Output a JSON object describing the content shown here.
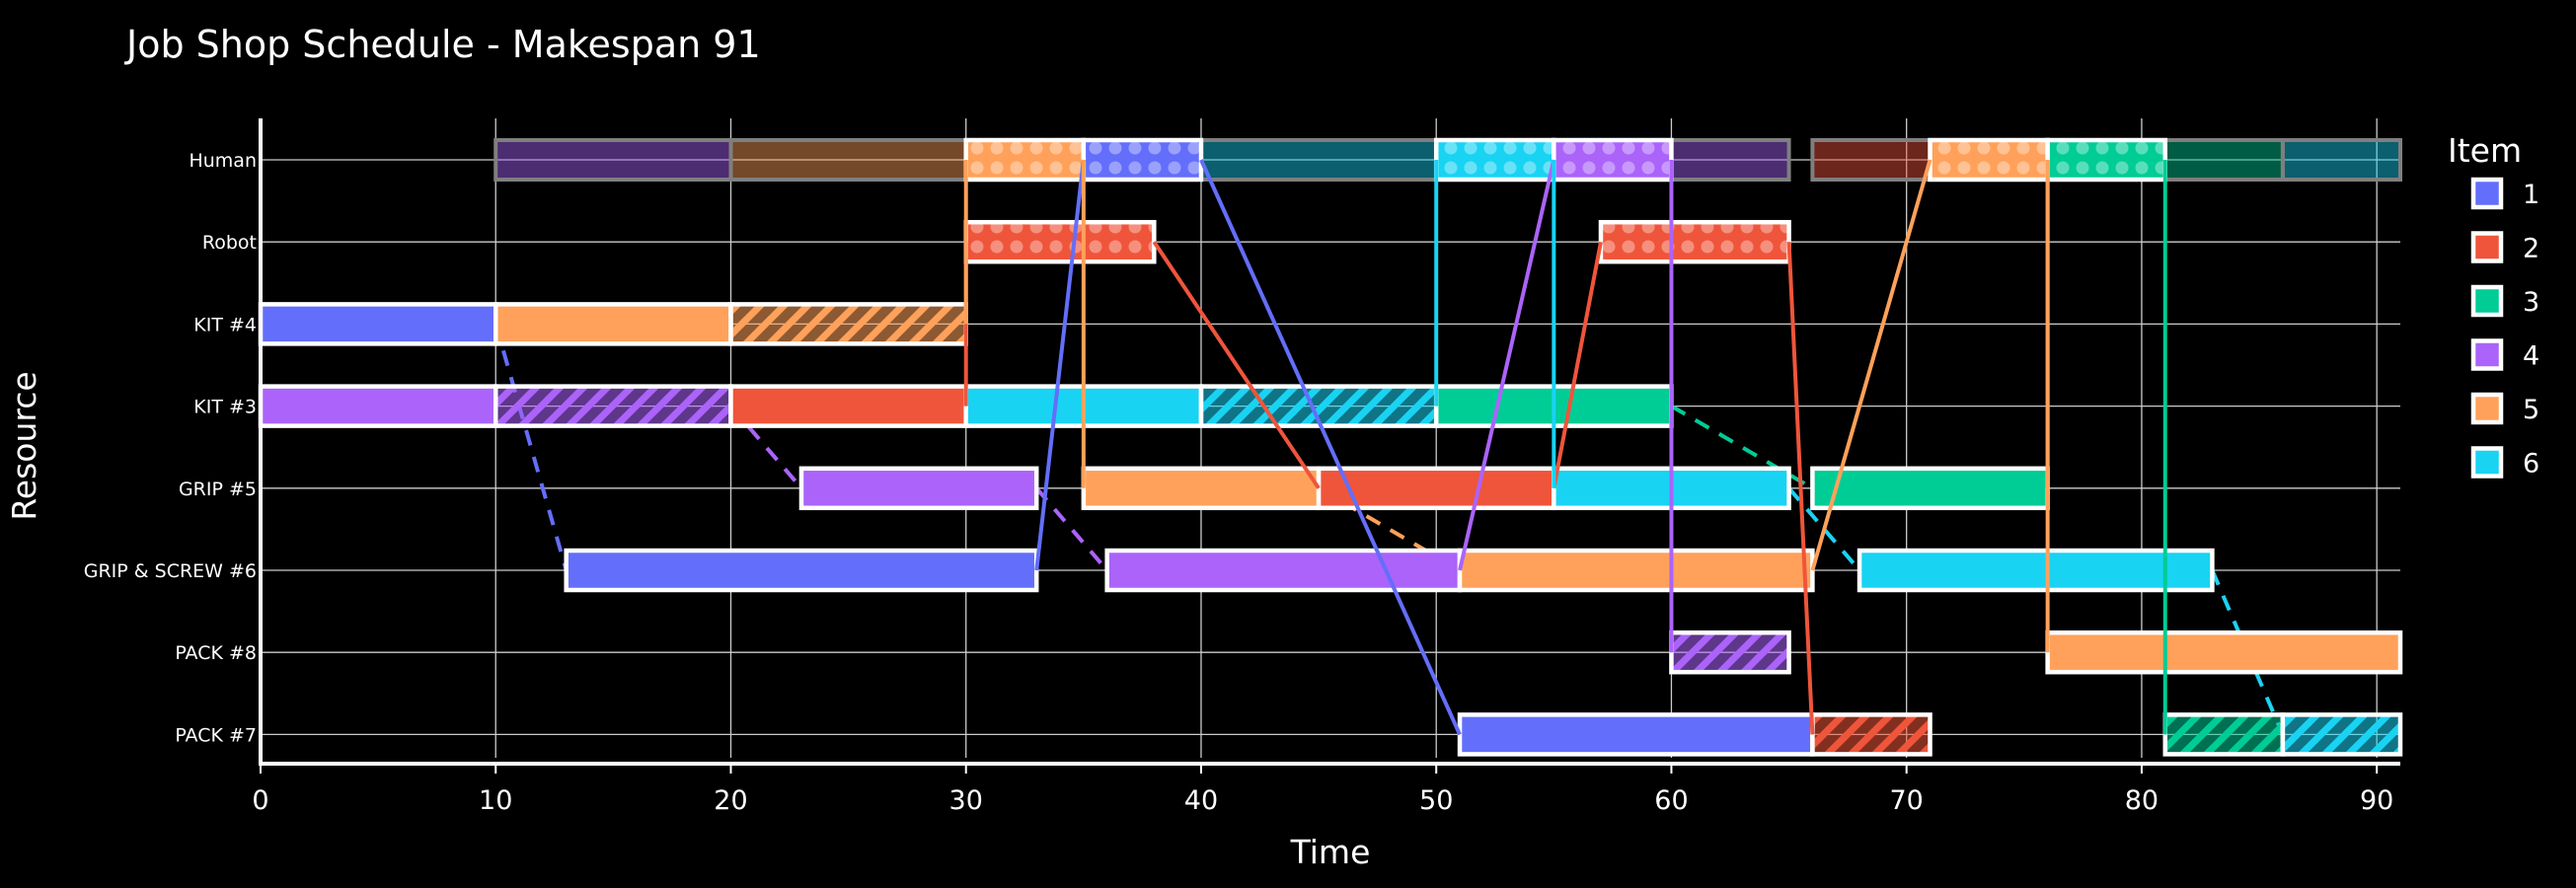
{
  "chart_data": {
    "type": "gantt",
    "title": "Job Shop Schedule - Makespan 91",
    "xlabel": "Time",
    "ylabel": "Resource",
    "xlim": [
      0,
      91
    ],
    "xticks": [
      0,
      10,
      20,
      30,
      40,
      50,
      60,
      70,
      80,
      90
    ],
    "grid": true,
    "legend_title": "Item",
    "legend_position": "right",
    "resources": [
      "Human",
      "Robot",
      "KIT #4",
      "KIT #3",
      "GRIP #5",
      "GRIP & SCREW #6",
      "PACK #8",
      "PACK #7"
    ],
    "items": [
      {
        "name": "1",
        "color": "#636efa"
      },
      {
        "name": "2",
        "color": "#ef553b"
      },
      {
        "name": "3",
        "color": "#00cc96"
      },
      {
        "name": "4",
        "color": "#ab63fa"
      },
      {
        "name": "5",
        "color": "#ffa15a"
      },
      {
        "name": "6",
        "color": "#19d3f3"
      }
    ],
    "background_tasks": [
      {
        "resource": "Human",
        "item": "4",
        "start": 10,
        "end": 20
      },
      {
        "resource": "Human",
        "item": "5",
        "start": 20,
        "end": 30
      },
      {
        "resource": "Human",
        "item": "6",
        "start": 40,
        "end": 50
      },
      {
        "resource": "Human",
        "item": "4",
        "start": 60,
        "end": 65
      },
      {
        "resource": "Human",
        "item": "2",
        "start": 66,
        "end": 71
      },
      {
        "resource": "Human",
        "item": "3",
        "start": 81,
        "end": 86
      },
      {
        "resource": "Human",
        "item": "6",
        "start": 86,
        "end": 91
      }
    ],
    "tasks": [
      {
        "resource": "Human",
        "item": "5",
        "start": 30,
        "end": 35,
        "pattern": "dots"
      },
      {
        "resource": "Human",
        "item": "1",
        "start": 35,
        "end": 40,
        "pattern": "dots"
      },
      {
        "resource": "Human",
        "item": "6",
        "start": 50,
        "end": 55,
        "pattern": "dots"
      },
      {
        "resource": "Human",
        "item": "4",
        "start": 55,
        "end": 60,
        "pattern": "dots"
      },
      {
        "resource": "Human",
        "item": "5",
        "start": 71,
        "end": 76,
        "pattern": "dots"
      },
      {
        "resource": "Human",
        "item": "3",
        "start": 76,
        "end": 81,
        "pattern": "dots"
      },
      {
        "resource": "Robot",
        "item": "2",
        "start": 30,
        "end": 38,
        "pattern": "dots"
      },
      {
        "resource": "Robot",
        "item": "2",
        "start": 57,
        "end": 65,
        "pattern": "dots"
      },
      {
        "resource": "KIT #4",
        "item": "1",
        "start": 0,
        "end": 10,
        "pattern": "solid"
      },
      {
        "resource": "KIT #4",
        "item": "5",
        "start": 10,
        "end": 20,
        "pattern": "solid"
      },
      {
        "resource": "KIT #4",
        "item": "5",
        "start": 20,
        "end": 30,
        "pattern": "hatch"
      },
      {
        "resource": "KIT #3",
        "item": "4",
        "start": 0,
        "end": 10,
        "pattern": "solid"
      },
      {
        "resource": "KIT #3",
        "item": "4",
        "start": 10,
        "end": 20,
        "pattern": "hatch"
      },
      {
        "resource": "KIT #3",
        "item": "2",
        "start": 20,
        "end": 30,
        "pattern": "solid"
      },
      {
        "resource": "KIT #3",
        "item": "6",
        "start": 30,
        "end": 40,
        "pattern": "solid"
      },
      {
        "resource": "KIT #3",
        "item": "6",
        "start": 40,
        "end": 50,
        "pattern": "hatch"
      },
      {
        "resource": "KIT #3",
        "item": "3",
        "start": 50,
        "end": 60,
        "pattern": "solid"
      },
      {
        "resource": "GRIP #5",
        "item": "4",
        "start": 23,
        "end": 33,
        "pattern": "solid"
      },
      {
        "resource": "GRIP #5",
        "item": "5",
        "start": 35,
        "end": 45,
        "pattern": "solid"
      },
      {
        "resource": "GRIP #5",
        "item": "2",
        "start": 45,
        "end": 55,
        "pattern": "solid"
      },
      {
        "resource": "GRIP #5",
        "item": "6",
        "start": 55,
        "end": 65,
        "pattern": "solid"
      },
      {
        "resource": "GRIP #5",
        "item": "3",
        "start": 66,
        "end": 76,
        "pattern": "solid"
      },
      {
        "resource": "GRIP & SCREW #6",
        "item": "1",
        "start": 13,
        "end": 33,
        "pattern": "solid"
      },
      {
        "resource": "GRIP & SCREW #6",
        "item": "4",
        "start": 36,
        "end": 51,
        "pattern": "solid"
      },
      {
        "resource": "GRIP & SCREW #6",
        "item": "5",
        "start": 51,
        "end": 66,
        "pattern": "solid"
      },
      {
        "resource": "GRIP & SCREW #6",
        "item": "6",
        "start": 68,
        "end": 83,
        "pattern": "solid"
      },
      {
        "resource": "PACK #8",
        "item": "4",
        "start": 60,
        "end": 65,
        "pattern": "hatch"
      },
      {
        "resource": "PACK #8",
        "item": "5",
        "start": 76,
        "end": 91,
        "pattern": "solid"
      },
      {
        "resource": "PACK #7",
        "item": "1",
        "start": 51,
        "end": 66,
        "pattern": "solid"
      },
      {
        "resource": "PACK #7",
        "item": "2",
        "start": 66,
        "end": 71,
        "pattern": "hatch"
      },
      {
        "resource": "PACK #7",
        "item": "3",
        "start": 81,
        "end": 86,
        "pattern": "hatch"
      },
      {
        "resource": "PACK #7",
        "item": "6",
        "start": 86,
        "end": 91,
        "pattern": "hatch"
      }
    ],
    "links": [
      {
        "item": "1",
        "from": {
          "resource": "KIT #4",
          "time": 10
        },
        "to": {
          "resource": "GRIP & SCREW #6",
          "time": 13
        },
        "style": "dashed"
      },
      {
        "item": "1",
        "from": {
          "resource": "GRIP & SCREW #6",
          "time": 33
        },
        "to": {
          "resource": "Human",
          "time": 35
        },
        "style": "solid"
      },
      {
        "item": "1",
        "from": {
          "resource": "Human",
          "time": 40
        },
        "to": {
          "resource": "PACK #7",
          "time": 51
        },
        "style": "solid"
      },
      {
        "item": "2",
        "from": {
          "resource": "KIT #3",
          "time": 30
        },
        "to": {
          "resource": "Robot",
          "time": 30
        },
        "style": "solid"
      },
      {
        "item": "2",
        "from": {
          "resource": "Robot",
          "time": 38
        },
        "to": {
          "resource": "GRIP #5",
          "time": 45
        },
        "style": "solid"
      },
      {
        "item": "2",
        "from": {
          "resource": "GRIP #5",
          "time": 55
        },
        "to": {
          "resource": "Robot",
          "time": 57
        },
        "style": "solid"
      },
      {
        "item": "2",
        "from": {
          "resource": "Robot",
          "time": 65
        },
        "to": {
          "resource": "PACK #7",
          "time": 66
        },
        "style": "solid"
      },
      {
        "item": "3",
        "from": {
          "resource": "KIT #3",
          "time": 60
        },
        "to": {
          "resource": "GRIP #5",
          "time": 66
        },
        "style": "dashed"
      },
      {
        "item": "3",
        "from": {
          "resource": "GRIP #5",
          "time": 76
        },
        "to": {
          "resource": "Human",
          "time": 76
        },
        "style": "solid"
      },
      {
        "item": "3",
        "from": {
          "resource": "Human",
          "time": 81
        },
        "to": {
          "resource": "PACK #7",
          "time": 81
        },
        "style": "solid"
      },
      {
        "item": "4",
        "from": {
          "resource": "KIT #3",
          "time": 20
        },
        "to": {
          "resource": "GRIP #5",
          "time": 23
        },
        "style": "dashed"
      },
      {
        "item": "4",
        "from": {
          "resource": "GRIP #5",
          "time": 33
        },
        "to": {
          "resource": "GRIP & SCREW #6",
          "time": 36
        },
        "style": "dashed"
      },
      {
        "item": "4",
        "from": {
          "resource": "GRIP & SCREW #6",
          "time": 51
        },
        "to": {
          "resource": "Human",
          "time": 55
        },
        "style": "solid"
      },
      {
        "item": "4",
        "from": {
          "resource": "Human",
          "time": 60
        },
        "to": {
          "resource": "PACK #8",
          "time": 60
        },
        "style": "solid"
      },
      {
        "item": "5",
        "from": {
          "resource": "KIT #4",
          "time": 30
        },
        "to": {
          "resource": "Human",
          "time": 30
        },
        "style": "solid"
      },
      {
        "item": "5",
        "from": {
          "resource": "Human",
          "time": 35
        },
        "to": {
          "resource": "GRIP #5",
          "time": 35
        },
        "style": "solid"
      },
      {
        "item": "5",
        "from": {
          "resource": "GRIP #5",
          "time": 45
        },
        "to": {
          "resource": "GRIP & SCREW #6",
          "time": 51
        },
        "style": "dashed"
      },
      {
        "item": "5",
        "from": {
          "resource": "GRIP & SCREW #6",
          "time": 66
        },
        "to": {
          "resource": "Human",
          "time": 71
        },
        "style": "solid"
      },
      {
        "item": "5",
        "from": {
          "resource": "Human",
          "time": 76
        },
        "to": {
          "resource": "PACK #8",
          "time": 76
        },
        "style": "solid"
      },
      {
        "item": "6",
        "from": {
          "resource": "KIT #3",
          "time": 50
        },
        "to": {
          "resource": "Human",
          "time": 50
        },
        "style": "solid"
      },
      {
        "item": "6",
        "from": {
          "resource": "Human",
          "time": 55
        },
        "to": {
          "resource": "GRIP #5",
          "time": 55
        },
        "style": "solid"
      },
      {
        "item": "6",
        "from": {
          "resource": "GRIP #5",
          "time": 65
        },
        "to": {
          "resource": "GRIP & SCREW #6",
          "time": 68
        },
        "style": "dashed"
      },
      {
        "item": "6",
        "from": {
          "resource": "GRIP & SCREW #6",
          "time": 83
        },
        "to": {
          "resource": "PACK #7",
          "time": 86
        },
        "style": "dashed"
      }
    ]
  }
}
